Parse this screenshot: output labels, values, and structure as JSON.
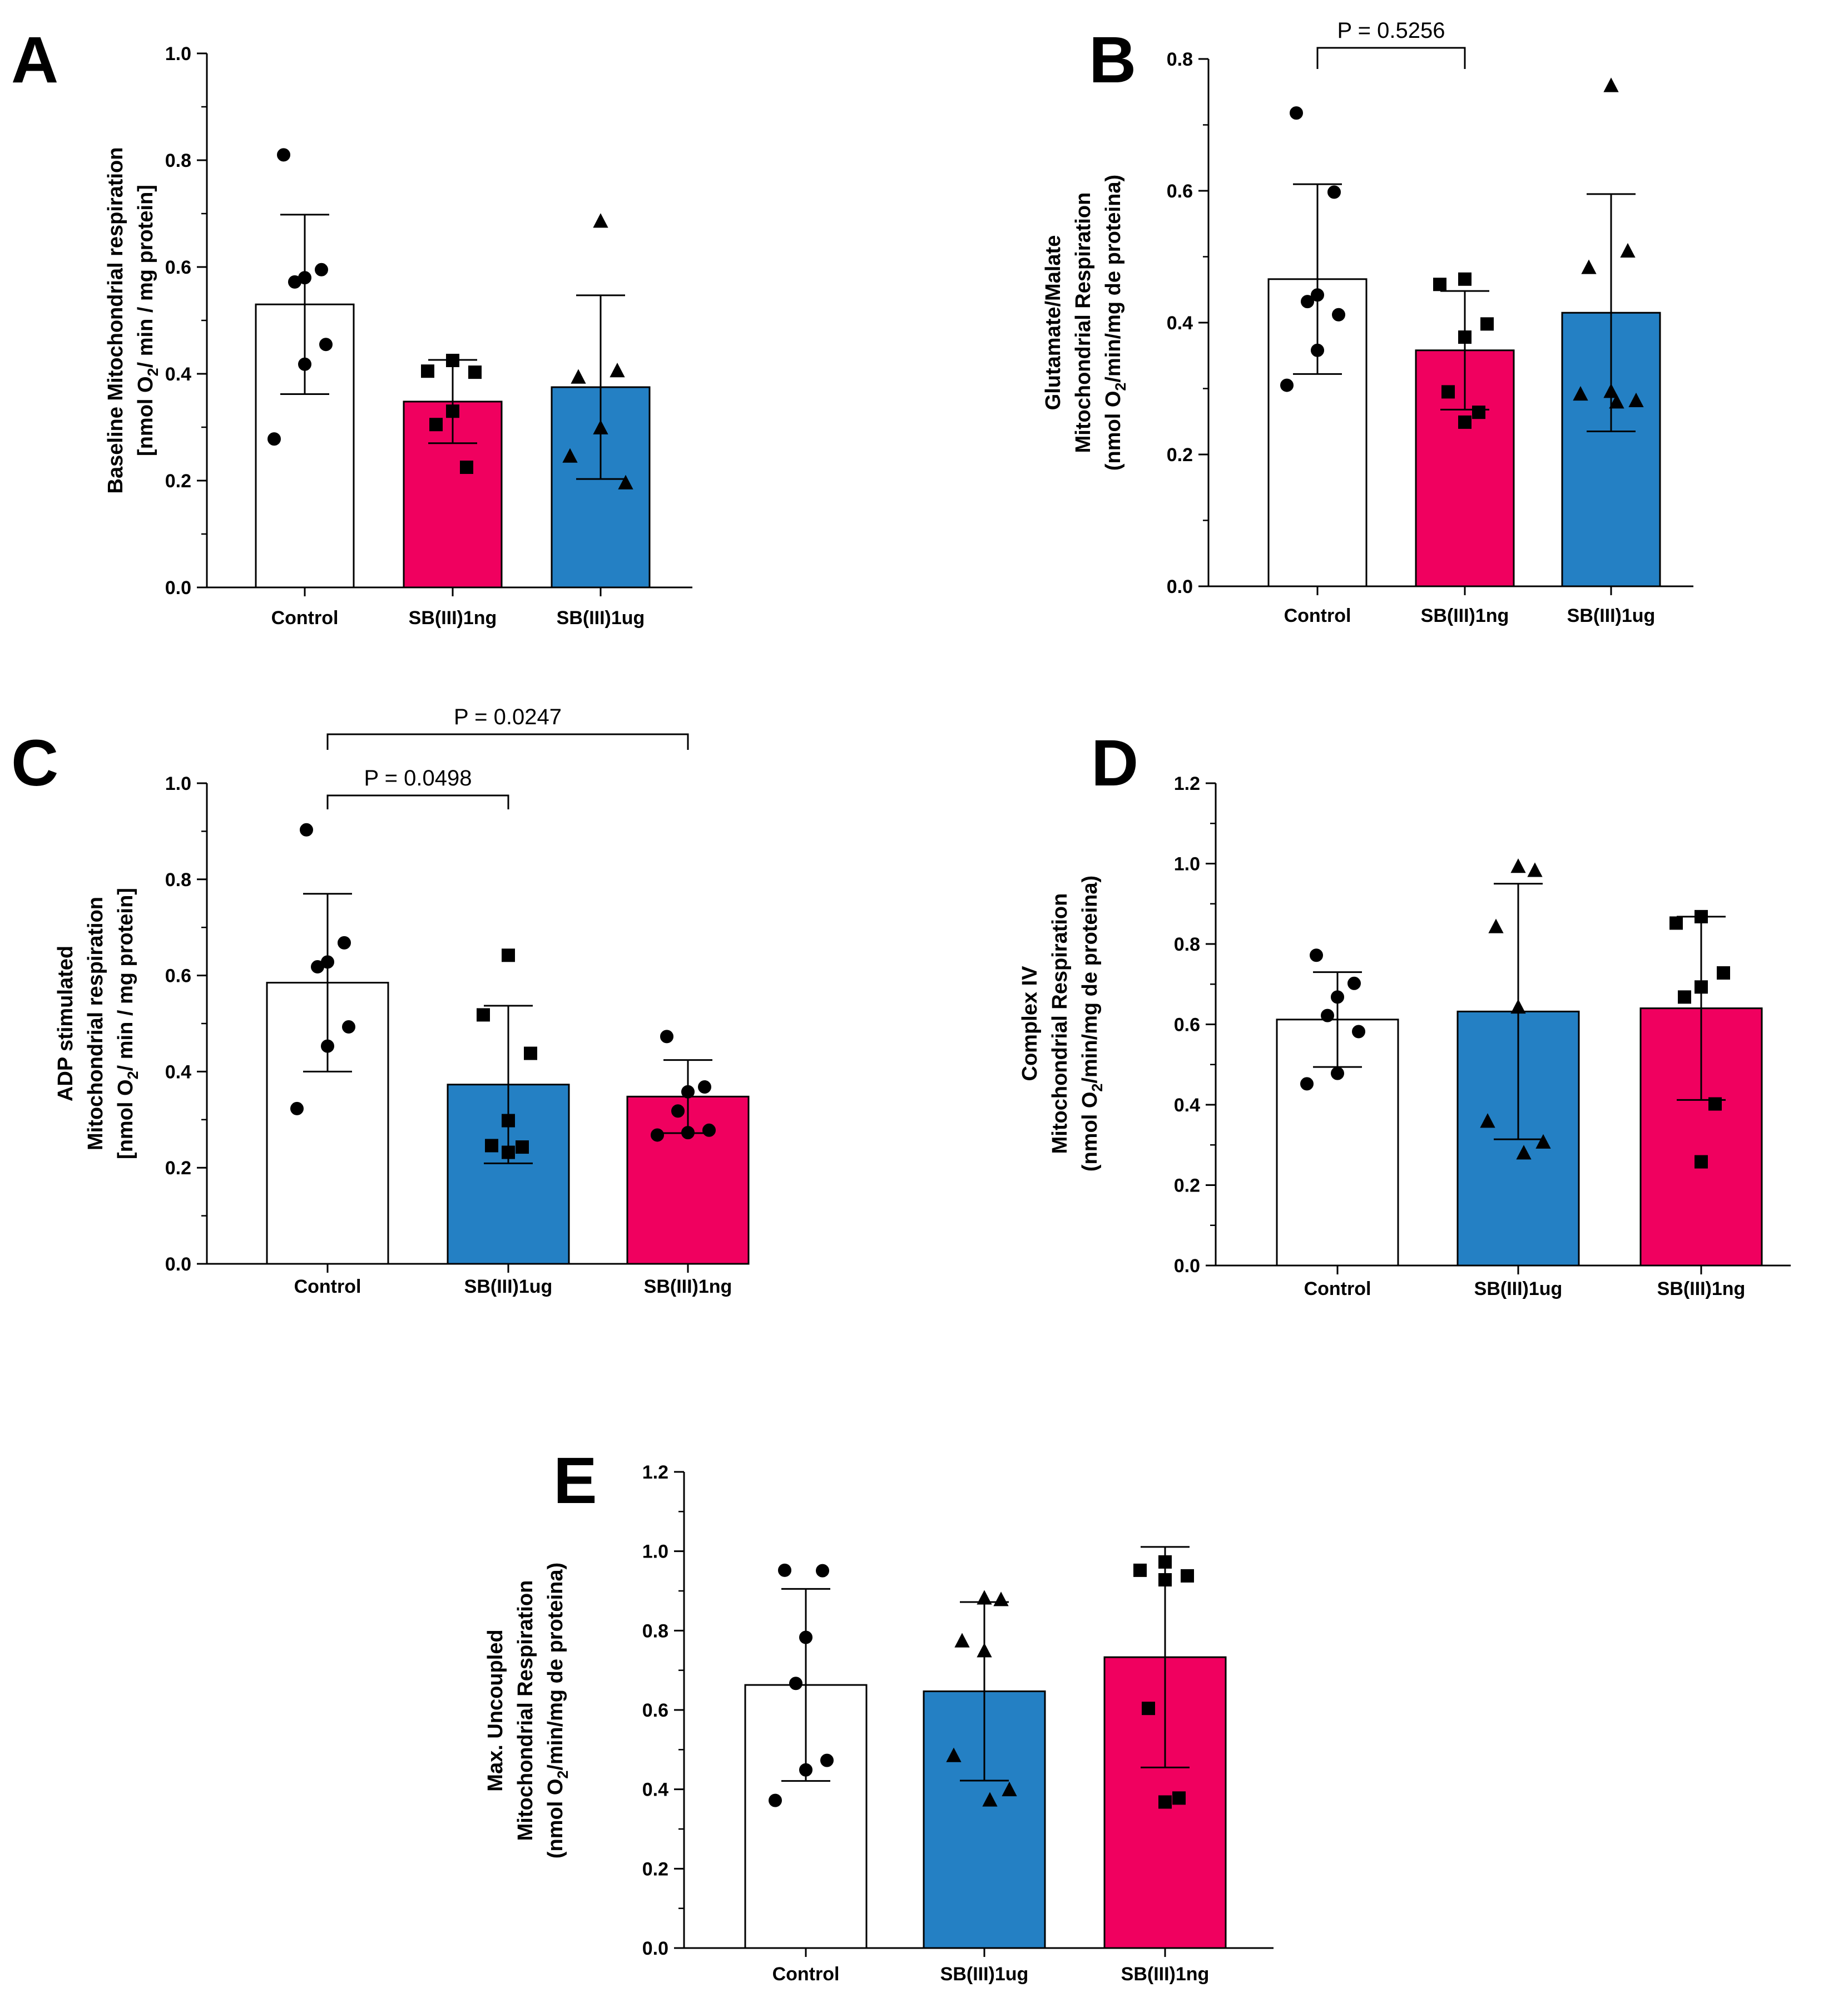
{
  "colors": {
    "control": "#ffffff",
    "sb_1ng": "#f0005f",
    "sb_1ug": "#2480c4",
    "stroke": "#000000"
  },
  "chart_data": [
    {
      "id": "A",
      "type": "bar",
      "letter": "A",
      "ylabel_lines": [
        "Baseline Mitochondrial respiration",
        "[nmol O| 2 |/ min / mg protein]"
      ],
      "ylim": [
        0,
        1.0
      ],
      "major_ticks": [
        0.0,
        0.2,
        0.4,
        0.6,
        0.8,
        1.0
      ],
      "tick_labels": [
        "0.0",
        "0.2",
        "0.4",
        "0.6",
        "0.8",
        "1.0"
      ],
      "minor_step": 0.1,
      "categories": [
        {
          "label": "Control",
          "mean": 0.53,
          "sd": 0.168,
          "color": "#ffffff",
          "marker": "circle",
          "points": [
            0.81,
            0.595,
            0.58,
            0.572,
            0.455,
            0.418,
            0.278
          ]
        },
        {
          "label": "SB(III)1ng",
          "mean": 0.348,
          "sd": 0.078,
          "color": "#f0005f",
          "marker": "square",
          "points": [
            0.425,
            0.405,
            0.403,
            0.33,
            0.305,
            0.225
          ]
        },
        {
          "label": "SB(III)1ug",
          "mean": 0.375,
          "sd": 0.172,
          "color": "#2480c4",
          "marker": "triangle",
          "points": [
            0.685,
            0.405,
            0.393,
            0.298,
            0.245,
            0.195
          ]
        }
      ],
      "brackets": []
    },
    {
      "id": "B",
      "type": "bar",
      "letter": "B",
      "ylabel_lines": [
        "Glutamate/Malate",
        "Mitochondrial Respiration",
        "(nmol O| 2 |/min/mg de proteina)"
      ],
      "ylim": [
        0,
        0.8
      ],
      "major_ticks": [
        0.0,
        0.2,
        0.4,
        0.6,
        0.8
      ],
      "tick_labels": [
        "0.0",
        "0.2",
        "0.4",
        "0.6",
        "0.8"
      ],
      "minor_step": 0.1,
      "categories": [
        {
          "label": "Control",
          "mean": 0.466,
          "sd": 0.144,
          "color": "#ffffff",
          "marker": "circle",
          "points": [
            0.718,
            0.598,
            0.442,
            0.432,
            0.412,
            0.358,
            0.305
          ]
        },
        {
          "label": "SB(III)1ng",
          "mean": 0.358,
          "sd": 0.09,
          "color": "#f0005f",
          "marker": "square",
          "points": [
            0.466,
            0.458,
            0.398,
            0.378,
            0.295,
            0.264,
            0.249
          ]
        },
        {
          "label": "SB(III)1ug",
          "mean": 0.415,
          "sd": 0.18,
          "color": "#2480c4",
          "marker": "triangle",
          "points": [
            0.759,
            0.508,
            0.483,
            0.295,
            0.291,
            0.281,
            0.279
          ]
        }
      ],
      "brackets": [
        {
          "from": 0,
          "to": 1,
          "label": "P = 0.5256"
        }
      ]
    },
    {
      "id": "C",
      "type": "bar",
      "letter": "C",
      "ylabel_lines": [
        "ADP stimulated",
        "Mitochondrial respiration",
        "[nmol O| 2 |/ min / mg protein]"
      ],
      "ylim": [
        0,
        1.0
      ],
      "major_ticks": [
        0.0,
        0.2,
        0.4,
        0.6,
        0.8,
        1.0
      ],
      "tick_labels": [
        "0.0",
        "0.2",
        "0.4",
        "0.6",
        "0.8",
        "1.0"
      ],
      "minor_step": 0.1,
      "categories": [
        {
          "label": "Control",
          "mean": 0.585,
          "sd": 0.185,
          "color": "#ffffff",
          "marker": "circle",
          "points": [
            0.903,
            0.668,
            0.628,
            0.618,
            0.493,
            0.453,
            0.323
          ]
        },
        {
          "label": "SB(III)1ug",
          "mean": 0.373,
          "sd": 0.164,
          "color": "#2480c4",
          "marker": "square",
          "points": [
            0.642,
            0.518,
            0.438,
            0.298,
            0.246,
            0.243,
            0.232
          ]
        },
        {
          "label": "SB(III)1ng",
          "mean": 0.348,
          "sd": 0.076,
          "color": "#f0005f",
          "marker": "circle",
          "points": [
            0.473,
            0.368,
            0.358,
            0.318,
            0.278,
            0.273,
            0.268
          ]
        }
      ],
      "brackets": [
        {
          "from": 0,
          "to": 1,
          "label": "P = 0.0498"
        },
        {
          "from": 0,
          "to": 2,
          "label": "P = 0.0247"
        }
      ]
    },
    {
      "id": "D",
      "type": "bar",
      "letter": "D",
      "ylabel_lines": [
        "Complex IV",
        "Mitochondrial Respiration",
        "(nmol O| 2 |/min/mg de proteina)"
      ],
      "ylim": [
        0,
        1.2
      ],
      "major_ticks": [
        0.0,
        0.2,
        0.4,
        0.6,
        0.8,
        1.0,
        1.2
      ],
      "tick_labels": [
        "0.0",
        "0.2",
        "0.4",
        "0.6",
        "0.8",
        "1.0",
        "1.2"
      ],
      "minor_step": 0.1,
      "categories": [
        {
          "label": "Control",
          "mean": 0.612,
          "sd": 0.118,
          "color": "#ffffff",
          "marker": "circle",
          "points": [
            0.772,
            0.702,
            0.668,
            0.622,
            0.582,
            0.478,
            0.452
          ]
        },
        {
          "label": "SB(III)1ug",
          "mean": 0.632,
          "sd": 0.318,
          "color": "#2480c4",
          "marker": "triangle",
          "points": [
            0.992,
            0.982,
            0.842,
            0.642,
            0.358,
            0.306,
            0.279
          ]
        },
        {
          "label": "SB(III)1ng",
          "mean": 0.64,
          "sd": 0.228,
          "color": "#f0005f",
          "marker": "square",
          "points": [
            0.868,
            0.852,
            0.728,
            0.693,
            0.668,
            0.402,
            0.258
          ]
        }
      ],
      "brackets": []
    },
    {
      "id": "E",
      "type": "bar",
      "letter": "E",
      "ylabel_lines": [
        "Max. Uncoupled",
        "Mitochondrial Respiration",
        "(nmol O| 2 |/min/mg de proteina)"
      ],
      "ylim": [
        0,
        1.2
      ],
      "major_ticks": [
        0.0,
        0.2,
        0.4,
        0.6,
        0.8,
        1.0,
        1.2
      ],
      "tick_labels": [
        "0.0",
        "0.2",
        "0.4",
        "0.6",
        "0.8",
        "1.0",
        "1.2"
      ],
      "minor_step": 0.1,
      "categories": [
        {
          "label": "Control",
          "mean": 0.663,
          "sd": 0.242,
          "color": "#ffffff",
          "marker": "circle",
          "points": [
            0.952,
            0.951,
            0.783,
            0.667,
            0.473,
            0.449,
            0.372
          ]
        },
        {
          "label": "SB(III)1ug",
          "mean": 0.647,
          "sd": 0.225,
          "color": "#2480c4",
          "marker": "triangle",
          "points": [
            0.881,
            0.877,
            0.773,
            0.748,
            0.484,
            0.398,
            0.372
          ]
        },
        {
          "label": "SB(III)1ng",
          "mean": 0.733,
          "sd": 0.278,
          "color": "#f0005f",
          "marker": "square",
          "points": [
            0.973,
            0.952,
            0.938,
            0.928,
            0.604,
            0.378,
            0.368
          ]
        }
      ],
      "brackets": []
    }
  ]
}
